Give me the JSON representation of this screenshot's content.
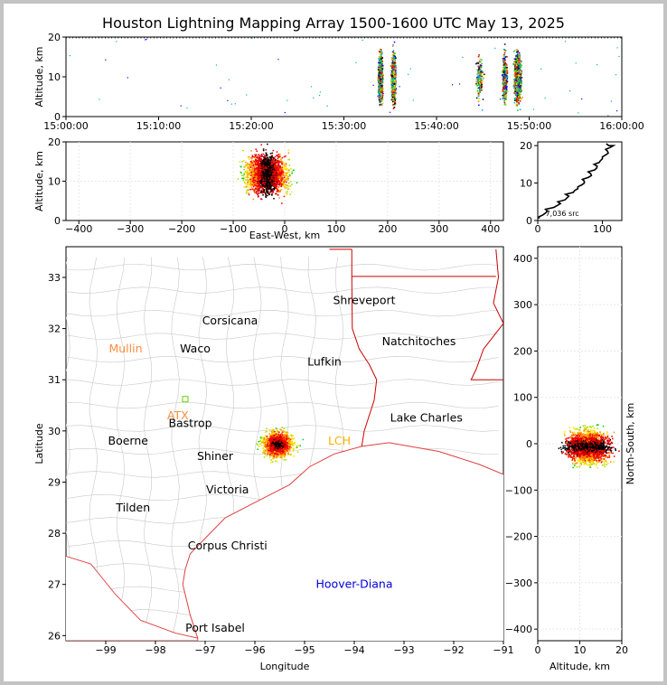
{
  "title": "Houston Lightning Mapping Array 1500-1600 UTC May 13, 2025",
  "colors": {
    "frame": "#c3c3c3",
    "state": "#cc0000",
    "county": "#bbbbbb",
    "coast": "#e04040"
  },
  "chart_data": [
    {
      "id": "time-height",
      "type": "scatter",
      "xlabel": "",
      "ylabel": "Altitude, km",
      "x_ticks": [
        "15:00:00",
        "15:10:00",
        "15:20:00",
        "15:30:00",
        "15:40:00",
        "15:50:00",
        "16:00:00"
      ],
      "y_ticks": [
        "0",
        "10",
        "20"
      ],
      "xlim_minutes": [
        0,
        60
      ],
      "ylim": [
        0,
        20
      ],
      "clusters_minutes": [
        {
          "center": 33.9,
          "width": 0.35,
          "density": 1.0
        },
        {
          "center": 35.3,
          "width": 0.35,
          "density": 1.0
        },
        {
          "center": 44.6,
          "width": 0.6,
          "density": 0.15
        },
        {
          "center": 47.3,
          "width": 0.4,
          "density": 0.4
        },
        {
          "center": 48.7,
          "width": 0.6,
          "density": 1.0
        }
      ]
    },
    {
      "id": "ew-height",
      "type": "scatter",
      "xlabel": "East-West, km",
      "ylabel": "Altitude, km",
      "x_ticks": [
        "−400",
        "−300",
        "−200",
        "−100",
        "0",
        "100",
        "200",
        "300",
        "400"
      ],
      "y_ticks": [
        "0",
        "10",
        "20"
      ],
      "xlim": [
        -425,
        425
      ],
      "ylim": [
        0,
        20
      ],
      "center_km": -35,
      "spread_km": 40
    },
    {
      "id": "histogram",
      "type": "line",
      "x_ticks": [
        "0",
        "100"
      ],
      "y_ticks": [
        "0",
        "10",
        "20"
      ],
      "xlim": [
        0,
        130
      ],
      "ylim": [
        0,
        21
      ],
      "annotation": "7,036 src",
      "profile": [
        [
          2,
          0.5
        ],
        [
          8,
          1.5
        ],
        [
          15,
          2.5
        ],
        [
          25,
          3.5
        ],
        [
          35,
          4.5
        ],
        [
          42,
          5.5
        ],
        [
          48,
          6.5
        ],
        [
          55,
          7.5
        ],
        [
          62,
          8.5
        ],
        [
          68,
          9.5
        ],
        [
          72,
          10.5
        ],
        [
          78,
          11.5
        ],
        [
          82,
          12.5
        ],
        [
          88,
          13.5
        ],
        [
          92,
          14.5
        ],
        [
          95,
          15.5
        ],
        [
          100,
          16.5
        ],
        [
          105,
          17.5
        ],
        [
          108,
          18.5
        ],
        [
          112,
          19.5
        ],
        [
          110,
          20
        ]
      ]
    },
    {
      "id": "plan-view",
      "type": "scatter",
      "xlabel": "Longitude",
      "ylabel": "Latitude",
      "x_ticks": [
        "−99",
        "−98",
        "−97",
        "−96",
        "−95",
        "−94",
        "−93",
        "−92",
        "−91"
      ],
      "y_ticks": [
        "26",
        "27",
        "28",
        "29",
        "30",
        "31",
        "32",
        "33"
      ],
      "xlim": [
        -99.8,
        -91.0
      ],
      "ylim": [
        25.9,
        33.6
      ],
      "storm_center": [
        -95.55,
        29.75
      ],
      "cities": [
        {
          "name": "Shreveport",
          "lon": -93.8,
          "lat": 32.55,
          "color": "#000000"
        },
        {
          "name": "Corsicana",
          "lon": -96.5,
          "lat": 32.15,
          "color": "#000000"
        },
        {
          "name": "Natchitoches",
          "lon": -92.7,
          "lat": 31.75,
          "color": "#000000"
        },
        {
          "name": "Mullin",
          "lon": -98.6,
          "lat": 31.6,
          "color": "#ff8c40"
        },
        {
          "name": "Waco",
          "lon": -97.2,
          "lat": 31.6,
          "color": "#000000"
        },
        {
          "name": "Lufkin",
          "lon": -94.6,
          "lat": 31.35,
          "color": "#000000"
        },
        {
          "name": "ATX",
          "lon": -97.55,
          "lat": 30.3,
          "color": "#ff8c40"
        },
        {
          "name": "Bastrop",
          "lon": -97.3,
          "lat": 30.15,
          "color": "#000000"
        },
        {
          "name": "Lake Charles",
          "lon": -92.55,
          "lat": 30.25,
          "color": "#000000"
        },
        {
          "name": "Boerne",
          "lon": -98.55,
          "lat": 29.8,
          "color": "#000000"
        },
        {
          "name": "LCH",
          "lon": -94.3,
          "lat": 29.8,
          "color": "#ffb000"
        },
        {
          "name": "Shiner",
          "lon": -96.8,
          "lat": 29.5,
          "color": "#000000"
        },
        {
          "name": "Victoria",
          "lon": -96.55,
          "lat": 28.85,
          "color": "#000000"
        },
        {
          "name": "Tilden",
          "lon": -98.45,
          "lat": 28.5,
          "color": "#000000"
        },
        {
          "name": "Corpus Christi",
          "lon": -96.55,
          "lat": 27.75,
          "color": "#000000"
        },
        {
          "name": "Hoover-Diana",
          "lon": -94.0,
          "lat": 27.0,
          "color": "#0000dd"
        },
        {
          "name": "Port Isabel",
          "lon": -96.8,
          "lat": 26.15,
          "color": "#000000"
        }
      ]
    },
    {
      "id": "height-ns",
      "type": "scatter",
      "xlabel": "Altitude, km",
      "ylabel": "North-South, km",
      "x_ticks": [
        "0",
        "10",
        "20"
      ],
      "y_ticks": [
        "−400",
        "−300",
        "−200",
        "−100",
        "0",
        "100",
        "200",
        "300",
        "400"
      ],
      "xlim": [
        0,
        20
      ],
      "ylim": [
        -425,
        425
      ],
      "center_km": -5,
      "spread_km": 35
    }
  ]
}
